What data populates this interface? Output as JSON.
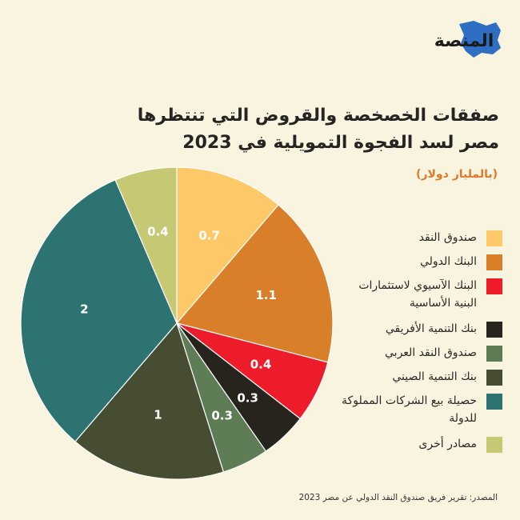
{
  "brand": {
    "name": "المنصة",
    "accent": "#2e6fc4"
  },
  "title_lines": [
    "صفقات الخصخصة والقروض التي تنتظرها",
    "مصر لسد الفجوة التمويلية في 2023"
  ],
  "unit_note": "(بالمليار دولار)",
  "source": "المصدر: تقرير فريق صندوق النقد الدولي عن مصر 2023",
  "chart_data": {
    "type": "pie",
    "title": "صفقات الخصخصة والقروض التي تنتظرها مصر لسد الفجوة التمويلية في 2023",
    "unit": "(بالمليار دولار)",
    "legend_position": "right",
    "slices": [
      {
        "label": "صندوق النقد",
        "value": 0.7,
        "display": "0.7",
        "color": "#fdc867",
        "text_color": "#ffffff"
      },
      {
        "label": "البنك الدولي",
        "value": 1.1,
        "display": "1.1",
        "color": "#d97f2a",
        "text_color": "#ffffff"
      },
      {
        "label": "البنك الآسيوي لاستثمارات البنية الأساسية",
        "value": 0.4,
        "display": "0.4",
        "color": "#ee1c2b",
        "text_color": "#ffffff"
      },
      {
        "label": "بنك التنمية الأفريقي",
        "value": 0.3,
        "display": "0.3",
        "color": "#27241e",
        "text_color": "#ffffff"
      },
      {
        "label": "صندوق النقد العربي",
        "value": 0.3,
        "display": "0.3",
        "color": "#5e7d57",
        "text_color": "#ffffff"
      },
      {
        "label": "بنك التنمية الصيني",
        "value": 1,
        "display": "1",
        "color": "#474d33",
        "text_color": "#ffffff"
      },
      {
        "label": "حصيلة بيع الشركات المملوكة للدولة",
        "value": 2,
        "display": "2",
        "color": "#2d7371",
        "text_color": "#ffffff"
      },
      {
        "label": "مصادر أخرى",
        "value": 0.4,
        "display": "0.4",
        "color": "#c6c874",
        "text_color": "#ffffff"
      }
    ]
  }
}
